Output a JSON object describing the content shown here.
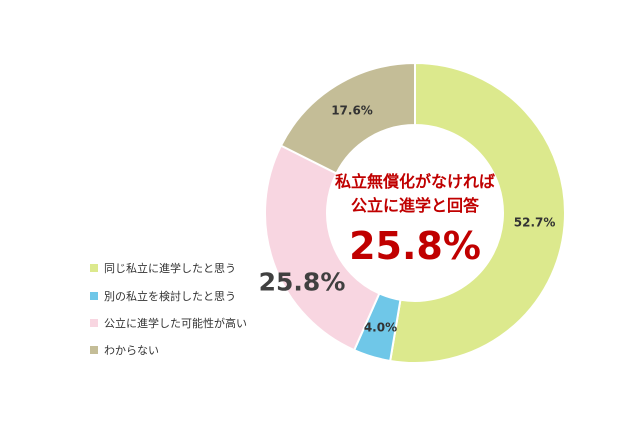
{
  "chart_data": {
    "type": "pie",
    "variant": "donut",
    "categories": [
      "同じ私立に進学したと思う",
      "別の私立を検討したと思う",
      "公立に進学した可能性が高い",
      "わからない"
    ],
    "values": [
      52.7,
      4.0,
      25.8,
      17.6
    ],
    "data_labels": [
      "52.7%",
      "4.0%",
      "25.8%",
      "17.6%"
    ],
    "colors": [
      "#dce98d",
      "#6fc7e8",
      "#f8d6e1",
      "#c4bd97"
    ],
    "start_angle": "top",
    "direction": "clockwise",
    "legend_position": "left",
    "center_annotation": {
      "line1": "私立無償化がなければ",
      "line2": "公立に進学と回答",
      "value": "25.8%"
    }
  }
}
